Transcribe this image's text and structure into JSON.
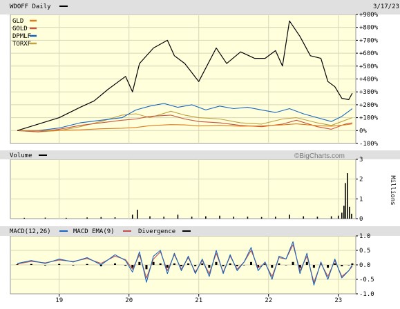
{
  "chart_data": [
    {
      "type": "line",
      "panel": "price",
      "title": "WDOFF Daily",
      "date_label": "3/17/23",
      "y_unit": "percent change",
      "ylim": [
        -100,
        900
      ],
      "yticks": [
        "+900%",
        "+800%",
        "+700%",
        "+600%",
        "+500%",
        "+400%",
        "+300%",
        "+200%",
        "+100%",
        "0%",
        "-100%"
      ],
      "grid": true,
      "legend_position": "top-left",
      "series": [
        {
          "name": "WDOFF",
          "color": "#000000",
          "x": [
            2018.4,
            2018.7,
            2019.0,
            2019.3,
            2019.5,
            2019.7,
            2019.95,
            2020.05,
            2020.15,
            2020.35,
            2020.55,
            2020.65,
            2020.8,
            2021.0,
            2021.25,
            2021.4,
            2021.6,
            2021.8,
            2021.95,
            2022.1,
            2022.2,
            2022.3,
            2022.45,
            2022.6,
            2022.75,
            2022.85,
            2022.95,
            2023.05,
            2023.15,
            2023.2
          ],
          "values": [
            0,
            50,
            100,
            180,
            230,
            320,
            420,
            300,
            520,
            640,
            700,
            580,
            520,
            380,
            640,
            520,
            610,
            560,
            560,
            620,
            500,
            850,
            730,
            580,
            560,
            380,
            340,
            250,
            240,
            290
          ]
        },
        {
          "name": "GLD",
          "color": "#e07b1c",
          "x": [
            2018.4,
            2018.7,
            2019.0,
            2019.3,
            2019.6,
            2019.9,
            2020.1,
            2020.3,
            2020.6,
            2020.8,
            2021.0,
            2021.3,
            2021.6,
            2021.9,
            2022.2,
            2022.4,
            2022.7,
            2022.9,
            2023.1,
            2023.2
          ],
          "values": [
            0,
            -2,
            2,
            6,
            14,
            18,
            24,
            38,
            46,
            44,
            36,
            40,
            34,
            36,
            44,
            52,
            38,
            34,
            44,
            52
          ]
        },
        {
          "name": "GOLD",
          "color": "#c8553d",
          "x": [
            2018.4,
            2018.7,
            2019.0,
            2019.3,
            2019.6,
            2019.9,
            2020.1,
            2020.3,
            2020.6,
            2020.8,
            2021.0,
            2021.3,
            2021.6,
            2021.9,
            2022.2,
            2022.4,
            2022.7,
            2022.9,
            2023.1,
            2023.2
          ],
          "values": [
            0,
            -10,
            10,
            40,
            60,
            80,
            90,
            110,
            120,
            90,
            70,
            60,
            40,
            30,
            50,
            80,
            30,
            10,
            50,
            60
          ]
        },
        {
          "name": "DPMLF",
          "color": "#1565c0",
          "x": [
            2018.4,
            2018.7,
            2019.0,
            2019.3,
            2019.6,
            2019.9,
            2020.1,
            2020.3,
            2020.5,
            2020.7,
            2020.9,
            2021.1,
            2021.3,
            2021.5,
            2021.7,
            2021.9,
            2022.1,
            2022.3,
            2022.5,
            2022.7,
            2022.9,
            2023.05,
            2023.15,
            2023.2
          ],
          "values": [
            0,
            0,
            20,
            60,
            80,
            100,
            160,
            190,
            210,
            180,
            200,
            160,
            190,
            170,
            180,
            160,
            140,
            170,
            130,
            100,
            70,
            110,
            150,
            170
          ]
        },
        {
          "name": "TORXF",
          "color": "#c0a040",
          "x": [
            2018.4,
            2018.7,
            2019.0,
            2019.3,
            2019.6,
            2019.9,
            2020.1,
            2020.3,
            2020.6,
            2020.8,
            2021.0,
            2021.3,
            2021.6,
            2021.9,
            2022.2,
            2022.4,
            2022.7,
            2022.9,
            2023.1,
            2023.2
          ],
          "values": [
            0,
            -10,
            0,
            30,
            70,
            120,
            130,
            100,
            150,
            120,
            100,
            90,
            60,
            50,
            90,
            100,
            60,
            40,
            80,
            100
          ]
        }
      ]
    },
    {
      "type": "bar",
      "panel": "volume",
      "title": "Volume",
      "watermark": "©BigCharts.com",
      "y_unit": "Millions",
      "ylim": [
        0,
        3
      ],
      "yticks": [
        "3",
        "2",
        "1",
        "0"
      ],
      "series": [
        {
          "name": "Volume",
          "color": "#000000",
          "x": [
            2018.5,
            2018.8,
            2019.1,
            2019.4,
            2019.6,
            2019.8,
            2020.05,
            2020.12,
            2020.3,
            2020.5,
            2020.7,
            2020.9,
            2021.1,
            2021.3,
            2021.5,
            2021.7,
            2021.9,
            2022.1,
            2022.3,
            2022.5,
            2022.7,
            2022.9,
            2023.0,
            2023.05,
            2023.08,
            2023.1,
            2023.13,
            2023.16,
            2023.19
          ],
          "values": [
            0.04,
            0.05,
            0.04,
            0.06,
            0.08,
            0.07,
            0.2,
            0.45,
            0.12,
            0.1,
            0.2,
            0.1,
            0.12,
            0.15,
            0.1,
            0.1,
            0.08,
            0.1,
            0.2,
            0.12,
            0.1,
            0.12,
            0.15,
            0.3,
            0.65,
            1.8,
            2.3,
            0.6,
            0.25
          ]
        }
      ]
    },
    {
      "type": "line",
      "panel": "macd",
      "title": "MACD(12,26)",
      "ylim": [
        -1.0,
        1.0
      ],
      "yticks": [
        "1.0",
        "0.5",
        "0.0",
        "-0.5",
        "-1.0"
      ],
      "legend_position": "top-left",
      "series": [
        {
          "name": "MACD(12,26)",
          "color": "#1565c0",
          "x": [
            2018.4,
            2018.6,
            2018.8,
            2019.0,
            2019.2,
            2019.4,
            2019.6,
            2019.8,
            2019.95,
            2020.05,
            2020.15,
            2020.25,
            2020.35,
            2020.45,
            2020.55,
            2020.65,
            2020.75,
            2020.85,
            2020.95,
            2021.05,
            2021.15,
            2021.25,
            2021.35,
            2021.45,
            2021.55,
            2021.65,
            2021.75,
            2021.85,
            2021.95,
            2022.05,
            2022.15,
            2022.25,
            2022.35,
            2022.45,
            2022.55,
            2022.65,
            2022.75,
            2022.85,
            2022.95,
            2023.05,
            2023.15,
            2023.2
          ],
          "values": [
            0.05,
            0.15,
            0.05,
            0.2,
            0.1,
            0.25,
            0.0,
            0.35,
            0.15,
            -0.25,
            0.45,
            -0.6,
            0.3,
            0.5,
            -0.3,
            0.4,
            -0.2,
            0.3,
            -0.3,
            0.2,
            -0.4,
            0.5,
            -0.3,
            0.35,
            -0.2,
            0.1,
            0.6,
            -0.2,
            0.1,
            -0.5,
            0.3,
            0.2,
            0.8,
            -0.3,
            0.4,
            -0.7,
            0.1,
            -0.5,
            0.2,
            -0.45,
            -0.2,
            0.0
          ]
        },
        {
          "name": "MACD EMA(9)",
          "color": "#c0504d",
          "x": [
            2018.4,
            2018.6,
            2018.8,
            2019.0,
            2019.2,
            2019.4,
            2019.6,
            2019.8,
            2019.95,
            2020.05,
            2020.15,
            2020.25,
            2020.35,
            2020.45,
            2020.55,
            2020.65,
            2020.75,
            2020.85,
            2020.95,
            2021.05,
            2021.15,
            2021.25,
            2021.35,
            2021.45,
            2021.55,
            2021.65,
            2021.75,
            2021.85,
            2021.95,
            2022.05,
            2022.15,
            2022.25,
            2022.35,
            2022.45,
            2022.55,
            2022.65,
            2022.75,
            2022.85,
            2022.95,
            2023.05,
            2023.15,
            2023.2
          ],
          "values": [
            0.03,
            0.12,
            0.07,
            0.17,
            0.12,
            0.22,
            0.05,
            0.3,
            0.18,
            -0.15,
            0.35,
            -0.45,
            0.2,
            0.45,
            -0.2,
            0.35,
            -0.15,
            0.25,
            -0.25,
            0.15,
            -0.3,
            0.4,
            -0.25,
            0.3,
            -0.15,
            0.1,
            0.5,
            -0.1,
            0.05,
            -0.4,
            0.25,
            0.2,
            0.7,
            -0.2,
            0.3,
            -0.6,
            0.05,
            -0.4,
            0.15,
            -0.4,
            -0.2,
            -0.05
          ]
        },
        {
          "name": "Divergence",
          "color": "#000000",
          "x": [
            2018.4,
            2018.6,
            2018.8,
            2019.0,
            2019.2,
            2019.4,
            2019.6,
            2019.8,
            2019.95,
            2020.05,
            2020.15,
            2020.25,
            2020.35,
            2020.45,
            2020.55,
            2020.65,
            2020.75,
            2020.85,
            2020.95,
            2021.05,
            2021.15,
            2021.25,
            2021.35,
            2021.45,
            2021.55,
            2021.65,
            2021.75,
            2021.85,
            2021.95,
            2022.05,
            2022.15,
            2022.25,
            2022.35,
            2022.45,
            2022.55,
            2022.65,
            2022.75,
            2022.85,
            2022.95,
            2023.05,
            2023.15,
            2023.2
          ],
          "values": [
            0.02,
            0.03,
            -0.02,
            0.03,
            -0.02,
            0.03,
            -0.05,
            0.05,
            -0.03,
            -0.1,
            0.1,
            -0.15,
            0.1,
            0.05,
            -0.1,
            0.05,
            -0.05,
            0.05,
            -0.05,
            0.05,
            -0.1,
            0.1,
            -0.05,
            0.05,
            -0.05,
            0.0,
            0.1,
            -0.1,
            0.05,
            -0.1,
            0.05,
            0.0,
            0.1,
            -0.1,
            0.1,
            -0.1,
            0.05,
            -0.1,
            0.05,
            -0.05,
            0.0,
            0.05
          ]
        }
      ]
    }
  ],
  "x_axis": {
    "range": [
      2018.3,
      2023.25
    ],
    "ticks": [
      {
        "value": 2019,
        "label": "19"
      },
      {
        "value": 2020,
        "label": "20"
      },
      {
        "value": 2021,
        "label": "21"
      },
      {
        "value": 2022,
        "label": "22"
      },
      {
        "value": 2023,
        "label": "23"
      }
    ]
  }
}
